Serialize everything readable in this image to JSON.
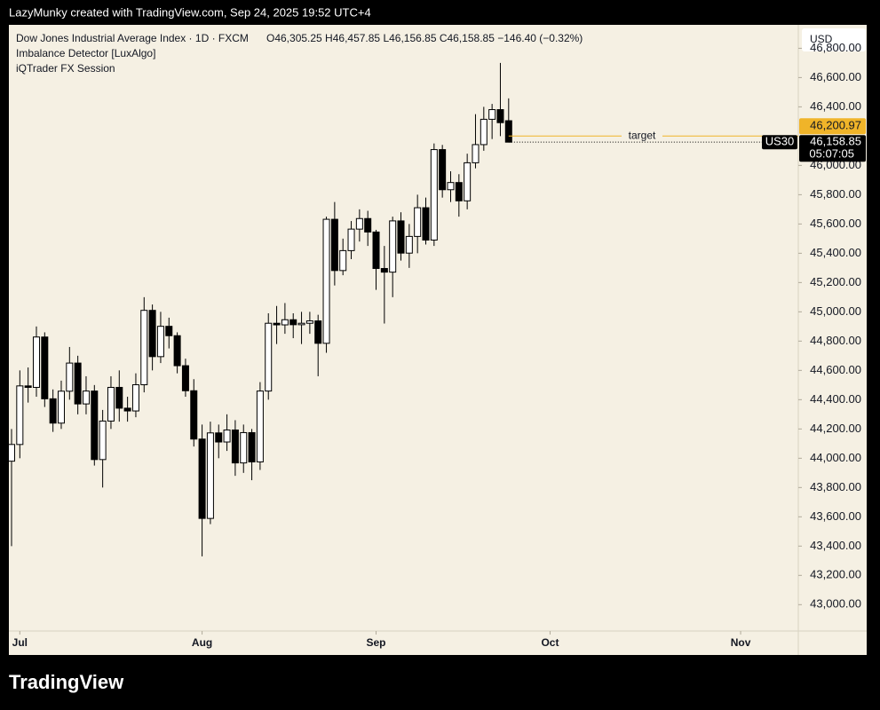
{
  "header": "LazyMunky created with TradingView.com, Sep 24, 2025 19:52 UTC+4",
  "footer": "TradingView",
  "chart_data": {
    "type": "candlestick",
    "title": "Dow Jones Industrial Average Index · 1D · FXCM",
    "ohlc_text": "O46,305.25  H46,457.85  L46,156.85  C46,158.85  −146.40 (−0.32%)",
    "indicators": [
      "Imbalance Detector [LuxAlgo]",
      "iQTrader FX Session"
    ],
    "currency": "USD",
    "symbol": "US30",
    "countdown": "05:07:05",
    "up_color": "#ffffff",
    "down_color": "#000000",
    "line_color": "#000000",
    "open": [
      43980,
      44094,
      44494,
      44484,
      44828,
      44406,
      44240,
      44458,
      44650,
      44371,
      44459,
      43991,
      44254,
      44484,
      44342,
      44323,
      44502,
      45010,
      44694,
      44901,
      44837,
      44632,
      44461,
      44131,
      43589,
      44173,
      44111,
      44193,
      43968,
      44175,
      43975,
      44459,
      44922,
      44911,
      44946,
      44912,
      44922,
      44938,
      44785,
      45632,
      45282,
      45418,
      45565,
      45637,
      45545,
      45296,
      45271,
      45621,
      45401,
      45515,
      45711,
      45490,
      46108,
      45834,
      45883,
      45758,
      46018,
      46142,
      46315,
      46381,
      46305.25
    ],
    "high": [
      44200,
      44600,
      44620,
      44900,
      44860,
      44470,
      44530,
      44760,
      44700,
      44560,
      44500,
      44330,
      44560,
      44600,
      44420,
      44580,
      45100,
      45050,
      45000,
      44960,
      44860,
      44680,
      44540,
      44230,
      44250,
      44230,
      44300,
      44260,
      44230,
      44200,
      44520,
      44990,
      45040,
      45060,
      44990,
      45000,
      45000,
      44980,
      45650,
      45750,
      45500,
      45620,
      45700,
      45690,
      45560,
      45450,
      45650,
      45680,
      45600,
      45800,
      45780,
      46150,
      46140,
      45960,
      45940,
      46080,
      46350,
      46400,
      46420,
      46700,
      46457.85
    ],
    "low": [
      43400,
      44000,
      44380,
      44420,
      44350,
      44180,
      44200,
      44400,
      44300,
      44300,
      43950,
      43800,
      44200,
      44250,
      44250,
      44280,
      44450,
      44600,
      44650,
      44750,
      44580,
      44420,
      44080,
      43330,
      43550,
      44000,
      44050,
      43880,
      43900,
      43850,
      43920,
      44400,
      44780,
      44850,
      44820,
      44780,
      44850,
      44560,
      44720,
      45180,
      45250,
      45360,
      45480,
      45450,
      45150,
      44920,
      45100,
      45350,
      45300,
      45400,
      45460,
      45450,
      45780,
      45750,
      45650,
      45700,
      45980,
      46100,
      46180,
      46200,
      46156.85
    ],
    "close": [
      44094,
      44494,
      44484,
      44828,
      44406,
      44240,
      44458,
      44650,
      44371,
      44459,
      43991,
      44254,
      44484,
      44342,
      44323,
      44502,
      45010,
      44694,
      44901,
      44837,
      44632,
      44461,
      44131,
      43589,
      44173,
      44111,
      44193,
      43968,
      44175,
      43975,
      44459,
      44922,
      44911,
      44946,
      44912,
      44922,
      44938,
      44785,
      45632,
      45282,
      45418,
      45565,
      45637,
      45545,
      45296,
      45271,
      45621,
      45401,
      45515,
      45711,
      45490,
      46108,
      45834,
      45883,
      45758,
      46018,
      46142,
      46315,
      46381,
      46292,
      46158.85
    ],
    "last_label": "46,158.85",
    "target": {
      "value": 46200.97,
      "label": "46,200.97",
      "name": "target",
      "color": "#f0b429"
    },
    "xticks": [
      {
        "value": 1,
        "label": "Jul"
      },
      {
        "value": 23,
        "label": "Aug"
      },
      {
        "value": 44,
        "label": "Sep"
      },
      {
        "value": 65,
        "label": "Oct"
      },
      {
        "value": 88,
        "label": "Nov"
      }
    ],
    "ylim": [
      42820,
      46960
    ],
    "yticks": [
      {
        "value": 43000,
        "label": "43,000.00"
      },
      {
        "value": 43200,
        "label": "43,200.00"
      },
      {
        "value": 43400,
        "label": "43,400.00"
      },
      {
        "value": 43600,
        "label": "43,600.00"
      },
      {
        "value": 43800,
        "label": "43,800.00"
      },
      {
        "value": 44000,
        "label": "44,000.00"
      },
      {
        "value": 44200,
        "label": "44,200.00"
      },
      {
        "value": 44400,
        "label": "44,400.00"
      },
      {
        "value": 44600,
        "label": "44,600.00"
      },
      {
        "value": 44800,
        "label": "44,800.00"
      },
      {
        "value": 45000,
        "label": "45,000.00"
      },
      {
        "value": 45200,
        "label": "45,200.00"
      },
      {
        "value": 45400,
        "label": "45,400.00"
      },
      {
        "value": 45600,
        "label": "45,600.00"
      },
      {
        "value": 45800,
        "label": "45,800.00"
      },
      {
        "value": 46000,
        "label": "46,000.00"
      },
      {
        "value": 46400,
        "label": "46,400.00"
      },
      {
        "value": 46600,
        "label": "46,600.00"
      },
      {
        "value": 46800,
        "label": "46,800.00"
      }
    ]
  }
}
